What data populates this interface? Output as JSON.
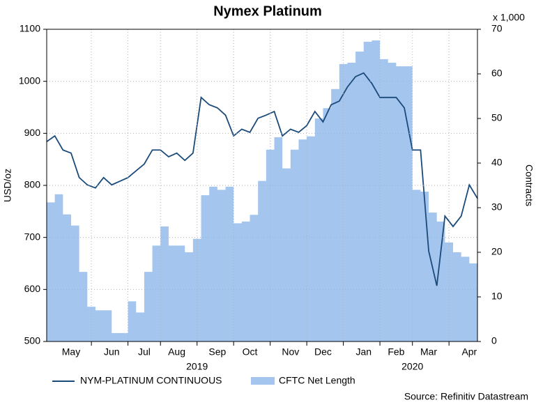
{
  "chart_data": {
    "type": "line",
    "title": "Nymex Platinum",
    "y_label": "USD/oz",
    "y2_label": "Contracts",
    "y2_unit": "x 1,000",
    "source": "Source: Refinitiv Datastream",
    "years": [
      "2019",
      "2020"
    ],
    "categories": [
      null,
      null,
      null,
      "May",
      null,
      null,
      null,
      null,
      "Jun",
      null,
      null,
      null,
      "Jul",
      null,
      null,
      null,
      "Aug",
      null,
      null,
      null,
      null,
      "Sep",
      null,
      null,
      null,
      "Oct",
      null,
      null,
      null,
      null,
      "Nov",
      null,
      null,
      null,
      "Dec",
      null,
      null,
      null,
      null,
      "Jan",
      null,
      null,
      null,
      "Feb",
      null,
      null,
      null,
      "Mar",
      null,
      null,
      null,
      null,
      "Apr",
      null
    ],
    "ylim": [
      500,
      1100
    ],
    "yticks": [
      500,
      600,
      700,
      800,
      900,
      1000,
      1100
    ],
    "y2lim": [
      0,
      70
    ],
    "y2ticks": [
      0,
      10,
      20,
      30,
      40,
      50,
      60,
      70
    ],
    "grid": true,
    "series": [
      {
        "name": "NYM-PLATINUM CONTINUOUS",
        "type": "line",
        "color": "#1a4a7a",
        "axis": "y",
        "values": [
          884,
          895,
          868,
          862,
          815,
          801,
          795,
          815,
          801,
          808,
          815,
          828,
          841,
          868,
          868,
          855,
          862,
          848,
          862,
          969,
          955,
          949,
          935,
          895,
          908,
          902,
          929,
          935,
          942,
          895,
          908,
          902,
          915,
          942,
          922,
          955,
          962,
          989,
          1009,
          1016,
          996,
          969,
          969,
          969,
          949,
          868,
          868,
          674,
          607,
          741,
          721,
          741,
          801,
          775
        ]
      },
      {
        "name": "CFTC Net Length",
        "type": "area",
        "color": "#a4c5ee",
        "axis": "y2",
        "values": [
          31.2,
          33,
          28.5,
          26,
          15.6,
          7.8,
          7,
          7,
          1.9,
          1.9,
          9,
          6.5,
          15.6,
          21.5,
          25.8,
          21.5,
          21.5,
          20,
          23,
          32.8,
          34.7,
          34,
          34.7,
          26.5,
          26.9,
          28.4,
          36,
          43,
          45.8,
          38.8,
          43,
          45.3,
          46,
          50,
          52.3,
          56.6,
          62.2,
          62.5,
          65,
          67.2,
          67.5,
          63.3,
          62.5,
          61.7,
          61.7,
          34,
          33.6,
          28.9,
          26.9,
          22.2,
          20,
          19,
          17.5,
          15.3
        ]
      }
    ]
  }
}
